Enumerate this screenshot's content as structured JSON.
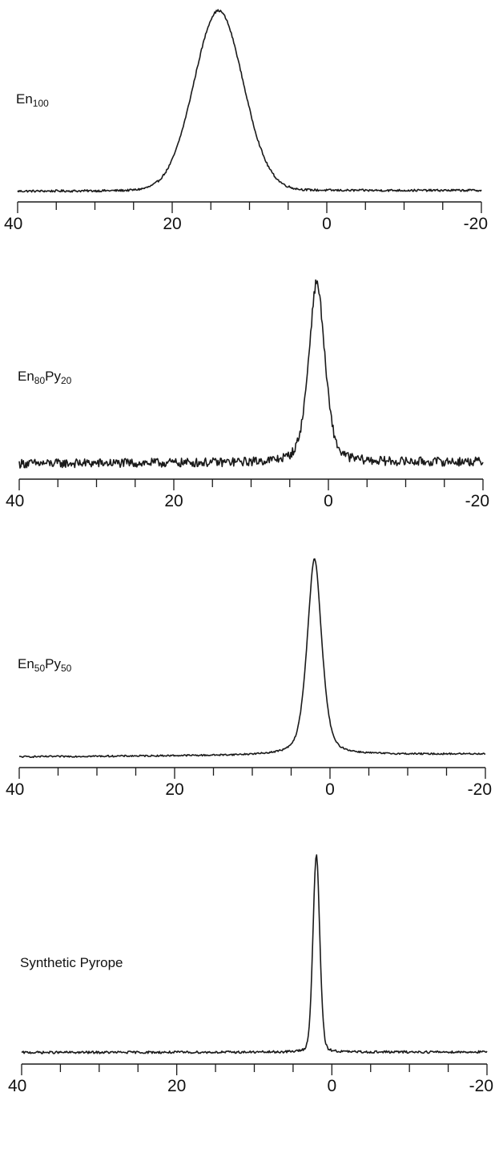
{
  "chart_data": [
    {
      "type": "line",
      "label": {
        "main": "En",
        "sub1": "100",
        "mid": "",
        "sub2": ""
      },
      "xlim": [
        40,
        -20
      ],
      "x_ticks": [
        40,
        20,
        0,
        -20
      ],
      "x_tick_labels": [
        "40",
        "20",
        "0",
        "-20"
      ],
      "minor_step": 5,
      "series": [
        {
          "peak_center": 14,
          "peak_width": 3.2,
          "lorentz_fraction": 0.05,
          "noise": 0.006,
          "baseline_start": 0.02,
          "baseline_end": 0.03
        }
      ]
    },
    {
      "type": "line",
      "label": {
        "main": "En",
        "sub1": "80",
        "mid": "Py",
        "sub2": "20"
      },
      "xlim": [
        40,
        -20
      ],
      "x_ticks": [
        40,
        20,
        0,
        -20
      ],
      "x_tick_labels": [
        "40",
        "20",
        "0",
        "-20"
      ],
      "minor_step": 5,
      "series": [
        {
          "peak_center": 1.5,
          "peak_width": 1.1,
          "lorentz_fraction": 0.45,
          "noise": 0.025,
          "baseline_start": 0.03,
          "baseline_end": 0.05
        }
      ]
    },
    {
      "type": "line",
      "label": {
        "main": "En",
        "sub1": "50",
        "mid": "Py",
        "sub2": "50"
      },
      "xlim": [
        40,
        -20
      ],
      "x_ticks": [
        40,
        20,
        0,
        -20
      ],
      "x_tick_labels": [
        "40",
        "20",
        "0",
        "-20"
      ],
      "minor_step": 5,
      "series": [
        {
          "peak_center": 2,
          "peak_width": 1.0,
          "lorentz_fraction": 0.5,
          "noise": 0.004,
          "baseline_start": 0.02,
          "baseline_end": 0.05
        }
      ]
    },
    {
      "type": "line",
      "label": {
        "main": "Synthetic Pyrope",
        "sub1": "",
        "mid": "",
        "sub2": ""
      },
      "xlim": [
        40,
        -20
      ],
      "x_ticks": [
        40,
        20,
        0,
        -20
      ],
      "x_tick_labels": [
        "40",
        "20",
        "0",
        "-20"
      ],
      "minor_step": 5,
      "series": [
        {
          "peak_center": 2,
          "peak_width": 0.45,
          "lorentz_fraction": 0.2,
          "noise": 0.006,
          "baseline_start": 0.02,
          "baseline_end": 0.025
        }
      ]
    }
  ]
}
